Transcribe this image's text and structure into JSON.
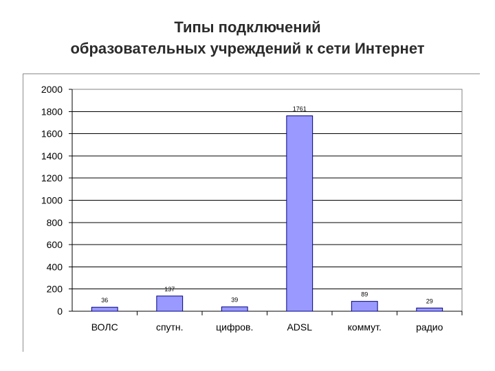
{
  "title": {
    "line1": "Типы подключений",
    "line2": "образовательных учреждений к сети Интернет"
  },
  "chart_data": {
    "type": "bar",
    "categories": [
      "ВОЛС",
      "спутн.",
      "цифров.",
      "ADSL",
      "коммут.",
      "радио"
    ],
    "values": [
      36,
      137,
      39,
      1761,
      89,
      29
    ],
    "value_labels": [
      "36",
      "137",
      "39",
      "1761",
      "89",
      "29"
    ],
    "yticks": [
      "0",
      "200",
      "400",
      "600",
      "800",
      "1000",
      "1200",
      "1400",
      "1600",
      "1800",
      "2000"
    ],
    "ylim": [
      0,
      2000
    ],
    "grid": true,
    "legend": "none",
    "bar_color": "#9999ff",
    "bar_edge_color": "#000080"
  }
}
